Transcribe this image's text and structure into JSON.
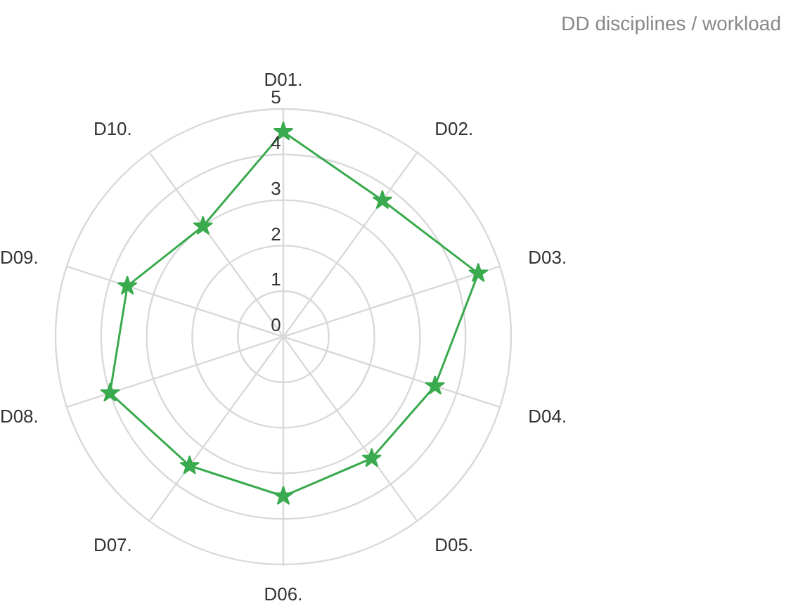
{
  "chart_data": {
    "type": "radar",
    "title": "DD disciplines / workload",
    "categories": [
      "D01.",
      "D02.",
      "D03.",
      "D04.",
      "D05.",
      "D06.",
      "D07.",
      "D08.",
      "D09.",
      "D10."
    ],
    "series": [
      {
        "color": "#3aaa4e",
        "values": [
          4.5,
          3.7,
          4.5,
          3.5,
          3.3,
          3.5,
          3.5,
          4.0,
          3.6,
          3.0
        ]
      }
    ],
    "ylim": [
      0,
      5
    ],
    "yticks": [
      0,
      1,
      2,
      3,
      4,
      5
    ],
    "grid": true,
    "marker": "star",
    "line_style": "solid"
  }
}
